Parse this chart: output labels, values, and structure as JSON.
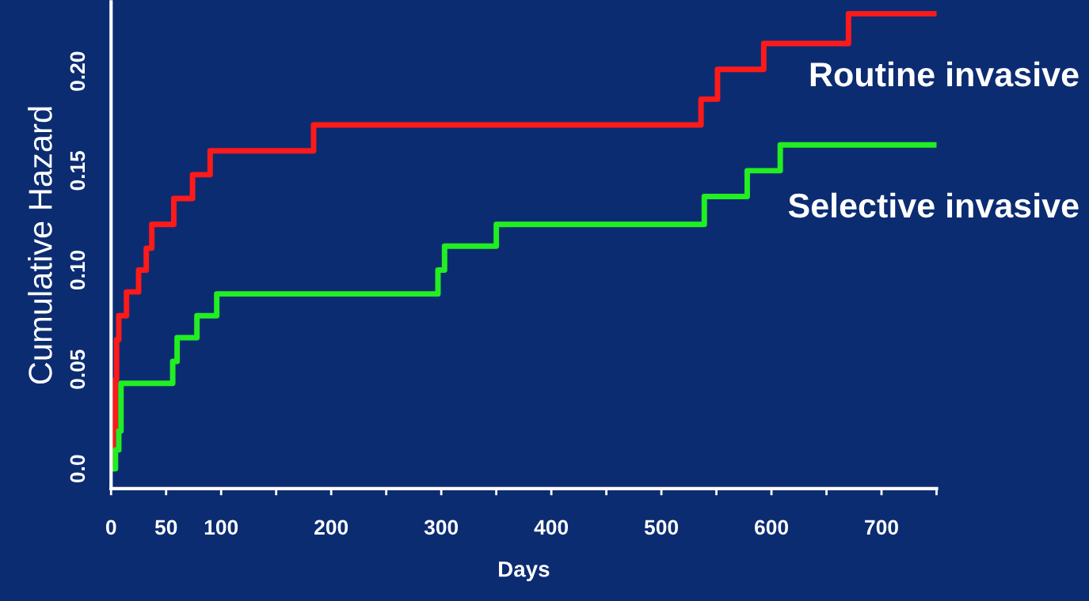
{
  "chart_data": {
    "type": "step",
    "xlabel": "Days",
    "ylabel": "Cumulative Hazard",
    "series": [
      {
        "name": "Routine invasive",
        "color": "#ff1a1a",
        "x": [
          0,
          2,
          4,
          5,
          7,
          14,
          25,
          32,
          37,
          57,
          74,
          90,
          184,
          536,
          551,
          593,
          670,
          750
        ],
        "values": [
          0,
          0.02,
          0.045,
          0.065,
          0.077,
          0.089,
          0.1,
          0.111,
          0.123,
          0.136,
          0.148,
          0.16,
          0.173,
          0.186,
          0.201,
          0.214,
          0.229,
          0.229
        ]
      },
      {
        "name": "Selective invasive",
        "color": "#22ee22",
        "x": [
          0,
          4,
          7,
          9,
          56,
          60,
          78,
          96,
          297,
          303,
          350,
          539,
          578,
          608,
          750
        ],
        "values": [
          0,
          0.0095,
          0.019,
          0.043,
          0.054,
          0.066,
          0.077,
          0.088,
          0.1,
          0.112,
          0.123,
          0.137,
          0.15,
          0.163,
          0.163
        ]
      }
    ],
    "xlim": [
      0,
      750
    ],
    "ylim": [
      -0.01,
      0.235
    ],
    "xticks": [
      0,
      50,
      100,
      {
        "value": 150,
        "label": null
      },
      200,
      {
        "value": 250,
        "label": null
      },
      300,
      {
        "value": 350,
        "label": null
      },
      400,
      {
        "value": 450,
        "label": null
      },
      500,
      {
        "value": 550,
        "label": null
      },
      600,
      {
        "value": 650,
        "label": null
      },
      700,
      {
        "value": 750,
        "label": null
      }
    ],
    "yticks": [
      {
        "value": 0,
        "label": "0.0"
      },
      0.05,
      {
        "value": 0.1,
        "label": "0.10"
      },
      0.15,
      {
        "value": 0.2,
        "label": "0.20"
      }
    ],
    "grid": false,
    "legend": false,
    "line_style": "solid",
    "marker": "none"
  }
}
